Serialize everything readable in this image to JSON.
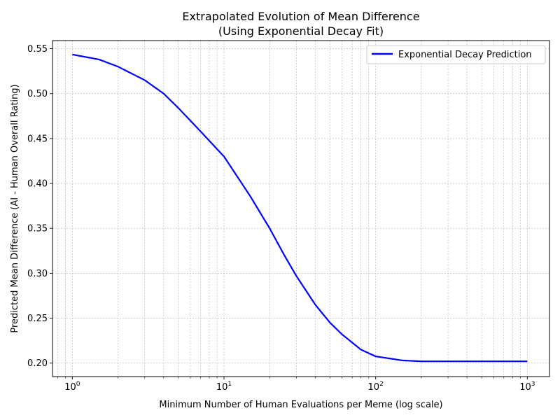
{
  "chart_data": {
    "type": "line",
    "title_line1": "Extrapolated Evolution of Mean Difference",
    "title_line2": "(Using Exponential Decay Fit)",
    "xlabel": "Minimum Number of Human Evaluations per Meme (log scale)",
    "ylabel": "Predicted Mean Difference (AI - Human Overall Rating)",
    "xscale": "log",
    "xlim": [
      0.74,
      1400
    ],
    "ylim": [
      0.185,
      0.559
    ],
    "grid": true,
    "legend_position": "upper-right",
    "x_ticks": [
      {
        "value": 1,
        "base": "10",
        "exp": "0"
      },
      {
        "value": 10,
        "base": "10",
        "exp": "1"
      },
      {
        "value": 100,
        "base": "10",
        "exp": "2"
      },
      {
        "value": 1000,
        "base": "10",
        "exp": "3"
      }
    ],
    "y_ticks": [
      {
        "value": 0.2,
        "label": "0.20"
      },
      {
        "value": 0.25,
        "label": "0.25"
      },
      {
        "value": 0.3,
        "label": "0.30"
      },
      {
        "value": 0.35,
        "label": "0.35"
      },
      {
        "value": 0.4,
        "label": "0.40"
      },
      {
        "value": 0.45,
        "label": "0.45"
      },
      {
        "value": 0.5,
        "label": "0.50"
      },
      {
        "value": 0.55,
        "label": "0.55"
      }
    ],
    "series": [
      {
        "name": "Exponential Decay Prediction",
        "color": "#0000ff",
        "x": [
          1,
          1.5,
          2,
          3,
          4,
          5,
          7,
          10,
          15,
          20,
          25,
          30,
          40,
          50,
          60,
          80,
          100,
          150,
          200,
          300,
          500,
          1000
        ],
        "y": [
          0.5435,
          0.538,
          0.53,
          0.515,
          0.5,
          0.484,
          0.458,
          0.43,
          0.385,
          0.35,
          0.32,
          0.297,
          0.265,
          0.245,
          0.232,
          0.215,
          0.2075,
          0.203,
          0.202,
          0.202,
          0.202,
          0.202
        ]
      }
    ]
  }
}
